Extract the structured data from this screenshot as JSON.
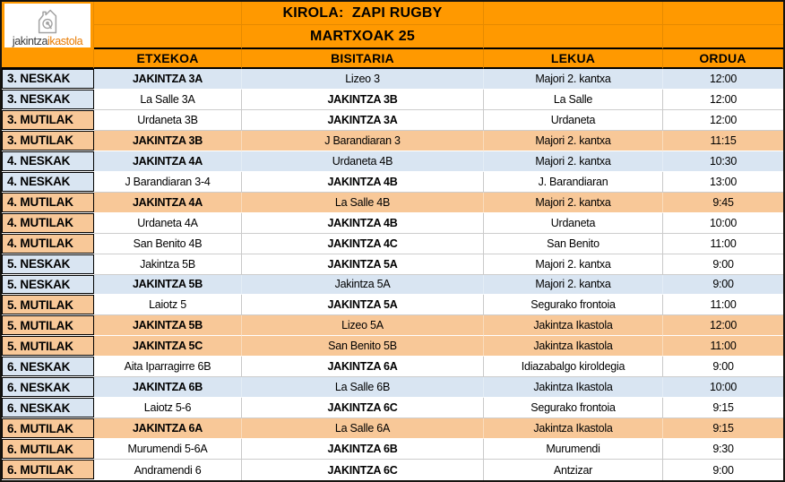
{
  "logo": {
    "name_black": "jakintza",
    "name_orange": "ikastola"
  },
  "title": {
    "line1": "KIROLA:  ZAPI RUGBY",
    "line2": "MARTXOAK 25"
  },
  "columns": [
    "ETXEKOA",
    "BISITARIA",
    "LEKUA",
    "ORDUA"
  ],
  "colors": {
    "header_orange": "#FF9900",
    "header_orange_gridline": "#E68A00",
    "girls_blue": "#D9E5F2",
    "boys_peach": "#F8C898",
    "logo_orange": "#E87A00",
    "grid_grey": "#C9C9C9",
    "border_black": "#000000"
  },
  "rows": [
    {
      "category": "3. NESKAK",
      "group": "neskak",
      "row_highlight": true,
      "etxekoa": "JAKINTZA 3A",
      "etxekoa_bold": true,
      "bisitaria": "Lizeo 3",
      "bisitaria_bold": false,
      "lekua": "Majori 2. kantxa",
      "ordua": "12:00"
    },
    {
      "category": "3. NESKAK",
      "group": "neskak",
      "row_highlight": false,
      "etxekoa": "La Salle 3A",
      "etxekoa_bold": false,
      "bisitaria": "JAKINTZA 3B",
      "bisitaria_bold": true,
      "lekua": "La Salle",
      "ordua": "12:00"
    },
    {
      "category": "3. MUTILAK",
      "group": "mutilak",
      "row_highlight": false,
      "etxekoa": "Urdaneta 3B",
      "etxekoa_bold": false,
      "bisitaria": "JAKINTZA 3A",
      "bisitaria_bold": true,
      "lekua": "Urdaneta",
      "ordua": "12:00"
    },
    {
      "category": "3. MUTILAK",
      "group": "mutilak",
      "row_highlight": true,
      "etxekoa": "JAKINTZA 3B",
      "etxekoa_bold": true,
      "bisitaria": "J Barandiaran 3",
      "bisitaria_bold": false,
      "lekua": "Majori 2. kantxa",
      "ordua": "11:15"
    },
    {
      "category": "4. NESKAK",
      "group": "neskak",
      "row_highlight": true,
      "etxekoa": "JAKINTZA 4A",
      "etxekoa_bold": true,
      "bisitaria": "Urdaneta 4B",
      "bisitaria_bold": false,
      "lekua": "Majori 2. kantxa",
      "ordua": "10:30"
    },
    {
      "category": "4. NESKAK",
      "group": "neskak",
      "row_highlight": false,
      "etxekoa": "J Barandiaran 3-4",
      "etxekoa_bold": false,
      "bisitaria": "JAKINTZA 4B",
      "bisitaria_bold": true,
      "lekua": "J. Barandiaran",
      "ordua": "13:00"
    },
    {
      "category": "4. MUTILAK",
      "group": "mutilak",
      "row_highlight": true,
      "etxekoa": "JAKINTZA 4A",
      "etxekoa_bold": true,
      "bisitaria": "La Salle 4B",
      "bisitaria_bold": false,
      "lekua": "Majori 2. kantxa",
      "ordua": "9:45"
    },
    {
      "category": "4. MUTILAK",
      "group": "mutilak",
      "row_highlight": false,
      "etxekoa": "Urdaneta 4A",
      "etxekoa_bold": false,
      "bisitaria": "JAKINTZA 4B",
      "bisitaria_bold": true,
      "lekua": "Urdaneta",
      "ordua": "10:00"
    },
    {
      "category": "4. MUTILAK",
      "group": "mutilak",
      "row_highlight": false,
      "etxekoa": "San Benito 4B",
      "etxekoa_bold": false,
      "bisitaria": "JAKINTZA 4C",
      "bisitaria_bold": true,
      "lekua": "San Benito",
      "ordua": "11:00"
    },
    {
      "category": "5. NESKAK",
      "group": "neskak",
      "row_highlight": false,
      "etxekoa": "Jakintza 5B",
      "etxekoa_bold": false,
      "bisitaria": "JAKINTZA 5A",
      "bisitaria_bold": true,
      "lekua": "Majori 2. kantxa",
      "ordua": "9:00"
    },
    {
      "category": "5. NESKAK",
      "group": "neskak",
      "row_highlight": true,
      "etxekoa": "JAKINTZA 5B",
      "etxekoa_bold": true,
      "bisitaria": "Jakintza 5A",
      "bisitaria_bold": false,
      "lekua": "Majori 2. kantxa",
      "ordua": "9:00"
    },
    {
      "category": "5. MUTILAK",
      "group": "mutilak",
      "row_highlight": false,
      "etxekoa": "Laiotz 5",
      "etxekoa_bold": false,
      "bisitaria": "JAKINTZA 5A",
      "bisitaria_bold": true,
      "lekua": "Segurako frontoia",
      "ordua": "11:00"
    },
    {
      "category": "5. MUTILAK",
      "group": "mutilak",
      "row_highlight": true,
      "etxekoa": "JAKINTZA 5B",
      "etxekoa_bold": true,
      "bisitaria": "Lizeo 5A",
      "bisitaria_bold": false,
      "lekua": "Jakintza Ikastola",
      "ordua": "12:00"
    },
    {
      "category": "5. MUTILAK",
      "group": "mutilak",
      "row_highlight": true,
      "etxekoa": "JAKINTZA 5C",
      "etxekoa_bold": true,
      "bisitaria": "San Benito 5B",
      "bisitaria_bold": false,
      "lekua": "Jakintza Ikastola",
      "ordua": "11:00"
    },
    {
      "category": "6. NESKAK",
      "group": "neskak",
      "row_highlight": false,
      "etxekoa": "Aita Iparragirre 6B",
      "etxekoa_bold": false,
      "bisitaria": "JAKINTZA 6A",
      "bisitaria_bold": true,
      "lekua": "Idiazabalgo kiroldegia",
      "ordua": "9:00"
    },
    {
      "category": "6. NESKAK",
      "group": "neskak",
      "row_highlight": true,
      "etxekoa": "JAKINTZA 6B",
      "etxekoa_bold": true,
      "bisitaria": "La Salle 6B",
      "bisitaria_bold": false,
      "lekua": "Jakintza Ikastola",
      "ordua": "10:00"
    },
    {
      "category": "6. NESKAK",
      "group": "neskak",
      "row_highlight": false,
      "etxekoa": "Laiotz 5-6",
      "etxekoa_bold": false,
      "bisitaria": "JAKINTZA 6C",
      "bisitaria_bold": true,
      "lekua": "Segurako frontoia",
      "ordua": "9:15"
    },
    {
      "category": "6. MUTILAK",
      "group": "mutilak",
      "row_highlight": true,
      "etxekoa": "JAKINTZA 6A",
      "etxekoa_bold": true,
      "bisitaria": "La Salle 6A",
      "bisitaria_bold": false,
      "lekua": "Jakintza Ikastola",
      "ordua": "9:15"
    },
    {
      "category": "6. MUTILAK",
      "group": "mutilak",
      "row_highlight": false,
      "etxekoa": "Murumendi 5-6A",
      "etxekoa_bold": false,
      "bisitaria": "JAKINTZA 6B",
      "bisitaria_bold": true,
      "lekua": "Murumendi",
      "ordua": "9:30"
    },
    {
      "category": "6. MUTILAK",
      "group": "mutilak",
      "row_highlight": false,
      "etxekoa": "Andramendi 6",
      "etxekoa_bold": false,
      "bisitaria": "JAKINTZA 6C",
      "bisitaria_bold": true,
      "lekua": "Antzizar",
      "ordua": "9:00"
    }
  ]
}
